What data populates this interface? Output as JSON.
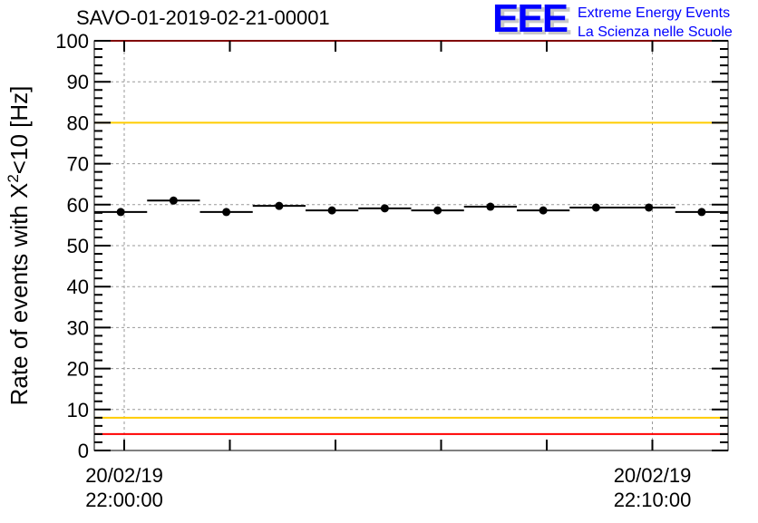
{
  "chart_data": {
    "type": "scatter",
    "title": "SAVO-01-2019-02-21-00001",
    "ylabel": "Rate of events with X",
    "ylabel_sup": "2",
    "ylabel_tail": "<10 [Hz]",
    "xlabel": "",
    "ylim": [
      0,
      100
    ],
    "xlim_seconds": [
      -34,
      686
    ],
    "yticks": [
      0,
      10,
      20,
      30,
      40,
      50,
      60,
      70,
      80,
      90,
      100
    ],
    "xtick_labels": [
      {
        "t": 0,
        "date": "20/02/19",
        "time": "22:00:00"
      },
      {
        "t": 600,
        "date": "20/02/19",
        "time": "22:10:00"
      }
    ],
    "bin_width_seconds": 60,
    "x_bin_centers_seconds": [
      -4,
      56,
      116,
      176,
      236,
      296,
      356,
      416,
      476,
      536,
      596,
      656
    ],
    "values": [
      58.2,
      61.0,
      58.2,
      59.7,
      58.6,
      59.1,
      58.6,
      59.5,
      58.6,
      59.3,
      59.3,
      58.2
    ],
    "reference_lines": [
      {
        "value": 100,
        "color": "#ff0000"
      },
      {
        "value": 80,
        "color": "#ffcc00"
      },
      {
        "value": 8,
        "color": "#ffcc00"
      },
      {
        "value": 4,
        "color": "#ff0000"
      }
    ],
    "grid": true
  },
  "logo": {
    "letters": "EEE",
    "line1": "Extreme Energy Events",
    "line2": "La Scienza nelle Scuole",
    "color": "#0000ff"
  }
}
